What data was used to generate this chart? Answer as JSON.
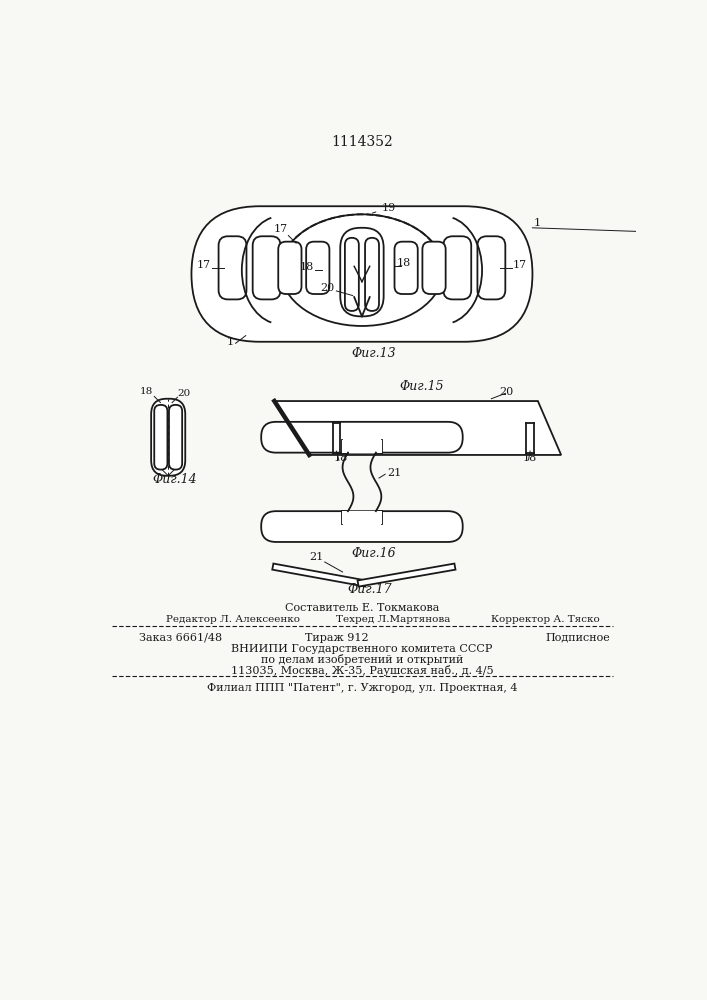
{
  "title": "1114352",
  "bg_color": "#f8f8f5",
  "line_color": "#1a1a1a",
  "lw": 1.3,
  "fig13_caption": "Φиг.13",
  "fig14_caption": "Φиг.14",
  "fig15_caption": "Φиг.15",
  "fig16_caption": "Φиг.16",
  "fig17_caption": "Φиг.17",
  "footer_sestavitel": "Составитель Е. Токмакова",
  "footer_redaktor": "Редактор Л. Алексеенко",
  "footer_tehred": "Техред Л.Мартянова",
  "footer_korrektor": "Корректор А. Тяско",
  "footer_zakaz": "Заказ 6661/48",
  "footer_tirazh": "Тираж 912",
  "footer_podpisnoe": "Подписное",
  "footer_vniipи": "ВНИИПИ Государственного комитета СССР",
  "footer_po_delam": "по делам изобретений и открытий",
  "footer_addr": "113035, Москва, Ж-35, Раушская наб., д. 4/5",
  "footer_filial": "Филиал ППП \"Патент\", г. Ужгород, ул. Проектная, 4"
}
